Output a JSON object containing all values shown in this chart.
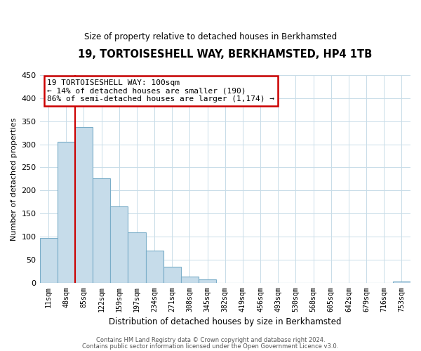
{
  "title": "19, TORTOISESHELL WAY, BERKHAMSTED, HP4 1TB",
  "subtitle": "Size of property relative to detached houses in Berkhamsted",
  "xlabel": "Distribution of detached houses by size in Berkhamsted",
  "ylabel": "Number of detached properties",
  "bar_labels": [
    "11sqm",
    "48sqm",
    "85sqm",
    "122sqm",
    "159sqm",
    "197sqm",
    "234sqm",
    "271sqm",
    "308sqm",
    "345sqm",
    "382sqm",
    "419sqm",
    "456sqm",
    "493sqm",
    "530sqm",
    "568sqm",
    "605sqm",
    "642sqm",
    "679sqm",
    "716sqm",
    "753sqm"
  ],
  "bar_values": [
    97,
    305,
    338,
    227,
    165,
    109,
    69,
    35,
    14,
    7,
    0,
    0,
    0,
    0,
    0,
    0,
    0,
    0,
    0,
    0,
    3
  ],
  "bar_color": "#c6dcea",
  "bar_edge_color": "#7aadc8",
  "vline_x": 1.5,
  "vline_color": "#cc0000",
  "ylim": [
    0,
    450
  ],
  "yticks": [
    0,
    50,
    100,
    150,
    200,
    250,
    300,
    350,
    400,
    450
  ],
  "annotation_title": "19 TORTOISESHELL WAY: 100sqm",
  "annotation_line1": "← 14% of detached houses are smaller (190)",
  "annotation_line2": "86% of semi-detached houses are larger (1,174) →",
  "footer1": "Contains HM Land Registry data © Crown copyright and database right 2024.",
  "footer2": "Contains public sector information licensed under the Open Government Licence v3.0."
}
